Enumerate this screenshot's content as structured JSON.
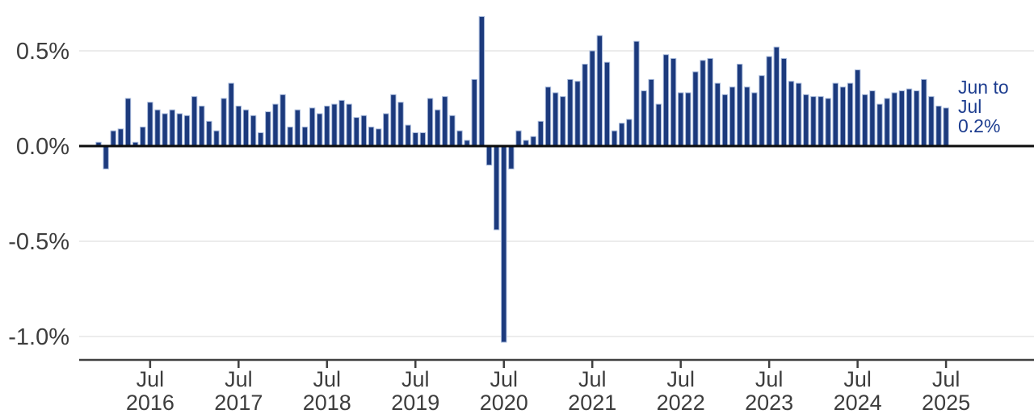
{
  "chart_data": {
    "type": "bar",
    "title": "",
    "unit": "%",
    "frequency": "monthly",
    "months": [
      "Dec 2015",
      "Jan 2016",
      "Feb 2016",
      "Mar 2016",
      "Apr 2016",
      "May 2016",
      "Jun 2016",
      "Jul 2016",
      "Aug 2016",
      "Sep 2016",
      "Oct 2016",
      "Nov 2016",
      "Dec 2016",
      "Jan 2017",
      "Feb 2017",
      "Mar 2017",
      "Apr 2017",
      "May 2017",
      "Jun 2017",
      "Jul 2017",
      "Aug 2017",
      "Sep 2017",
      "Oct 2017",
      "Nov 2017",
      "Dec 2017",
      "Jan 2018",
      "Feb 2018",
      "Mar 2018",
      "Apr 2018",
      "May 2018",
      "Jun 2018",
      "Jul 2018",
      "Aug 2018",
      "Sep 2018",
      "Oct 2018",
      "Nov 2018",
      "Dec 2018",
      "Jan 2019",
      "Feb 2019",
      "Mar 2019",
      "Apr 2019",
      "May 2019",
      "Jun 2019",
      "Jul 2019",
      "Aug 2019",
      "Sep 2019",
      "Oct 2019",
      "Nov 2019",
      "Dec 2019",
      "Jan 2020",
      "Feb 2020",
      "Mar 2020",
      "Apr 2020",
      "May 2020",
      "Jun 2020",
      "Jul 2020",
      "Aug 2020",
      "Sep 2020",
      "Oct 2020",
      "Nov 2020",
      "Dec 2020",
      "Jan 2021",
      "Feb 2021",
      "Mar 2021",
      "Apr 2021",
      "May 2021",
      "Jun 2021",
      "Jul 2021",
      "Aug 2021",
      "Sep 2021",
      "Oct 2021",
      "Nov 2021",
      "Dec 2021",
      "Jan 2022",
      "Feb 2022",
      "Mar 2022",
      "Apr 2022",
      "May 2022",
      "Jun 2022",
      "Jul 2022",
      "Aug 2022",
      "Sep 2022",
      "Oct 2022",
      "Nov 2022",
      "Dec 2022",
      "Jan 2023",
      "Feb 2023",
      "Mar 2023",
      "Apr 2023",
      "May 2023",
      "Jun 2023",
      "Jul 2023",
      "Aug 2023",
      "Sep 2023",
      "Oct 2023",
      "Nov 2023",
      "Dec 2023",
      "Jan 2024",
      "Feb 2024",
      "Mar 2024",
      "Apr 2024",
      "May 2024",
      "Jun 2024",
      "Jul 2024",
      "Aug 2024",
      "Sep 2024",
      "Oct 2024",
      "Nov 2024",
      "Dec 2024",
      "Jan 2025",
      "Feb 2025",
      "Mar 2025",
      "Apr 2025",
      "May 2025",
      "Jun 2025",
      "Jul 2025"
    ],
    "values": [
      0.02,
      -0.12,
      0.08,
      0.09,
      0.25,
      0.02,
      0.1,
      0.23,
      0.19,
      0.17,
      0.19,
      0.17,
      0.16,
      0.26,
      0.21,
      0.13,
      0.08,
      0.25,
      0.33,
      0.21,
      0.19,
      0.16,
      0.07,
      0.18,
      0.22,
      0.27,
      0.1,
      0.19,
      0.1,
      0.2,
      0.17,
      0.21,
      0.22,
      0.24,
      0.22,
      0.15,
      0.16,
      0.1,
      0.09,
      0.17,
      0.27,
      0.23,
      0.11,
      0.07,
      0.07,
      0.25,
      0.19,
      0.26,
      0.16,
      0.08,
      0.03,
      0.35,
      0.68,
      -0.1,
      -0.44,
      -1.03,
      -0.12,
      0.08,
      0.03,
      0.05,
      0.13,
      0.31,
      0.28,
      0.26,
      0.35,
      0.34,
      0.43,
      0.5,
      0.58,
      0.44,
      0.08,
      0.12,
      0.14,
      0.55,
      0.29,
      0.35,
      0.22,
      0.48,
      0.46,
      0.28,
      0.28,
      0.39,
      0.45,
      0.46,
      0.33,
      0.27,
      0.31,
      0.43,
      0.31,
      0.28,
      0.37,
      0.47,
      0.52,
      0.46,
      0.34,
      0.33,
      0.27,
      0.26,
      0.26,
      0.25,
      0.33,
      0.31,
      0.33,
      0.4,
      0.27,
      0.29,
      0.22,
      0.25,
      0.28,
      0.29,
      0.3,
      0.29,
      0.35,
      0.26,
      0.21,
      0.2
    ],
    "y_axis": {
      "ticks": [
        {
          "label": "0.5%",
          "value": 0.5
        },
        {
          "label": "0.0%",
          "value": 0.0
        },
        {
          "label": "-0.5%",
          "value": -0.5
        },
        {
          "label": "-1.0%",
          "value": -1.0
        }
      ],
      "range": [
        -1.12,
        0.7
      ],
      "grid": true
    },
    "x_axis": {
      "ticks": [
        {
          "month": "Jul",
          "year": "2016"
        },
        {
          "month": "Jul",
          "year": "2017"
        },
        {
          "month": "Jul",
          "year": "2018"
        },
        {
          "month": "Jul",
          "year": "2019"
        },
        {
          "month": "Jul",
          "year": "2020"
        },
        {
          "month": "Jul",
          "year": "2021"
        },
        {
          "month": "Jul",
          "year": "2022"
        },
        {
          "month": "Jul",
          "year": "2023"
        },
        {
          "month": "Jul",
          "year": "2024"
        },
        {
          "month": "Jul",
          "year": "2025"
        }
      ]
    },
    "annotation": {
      "lines": [
        "Jun to",
        "Jul",
        "0.2%"
      ],
      "meaning": "latest month-on-month change"
    },
    "legend": null,
    "colors": {
      "bar": "#1c3a7d",
      "bar_stroke": "#a9bbdc",
      "zero_line": "#0c0c0c",
      "axis": "#404040",
      "gridline": "#ececec",
      "tick_text": "#3d3d3d",
      "annotation_text": "#1d3d8f"
    }
  }
}
